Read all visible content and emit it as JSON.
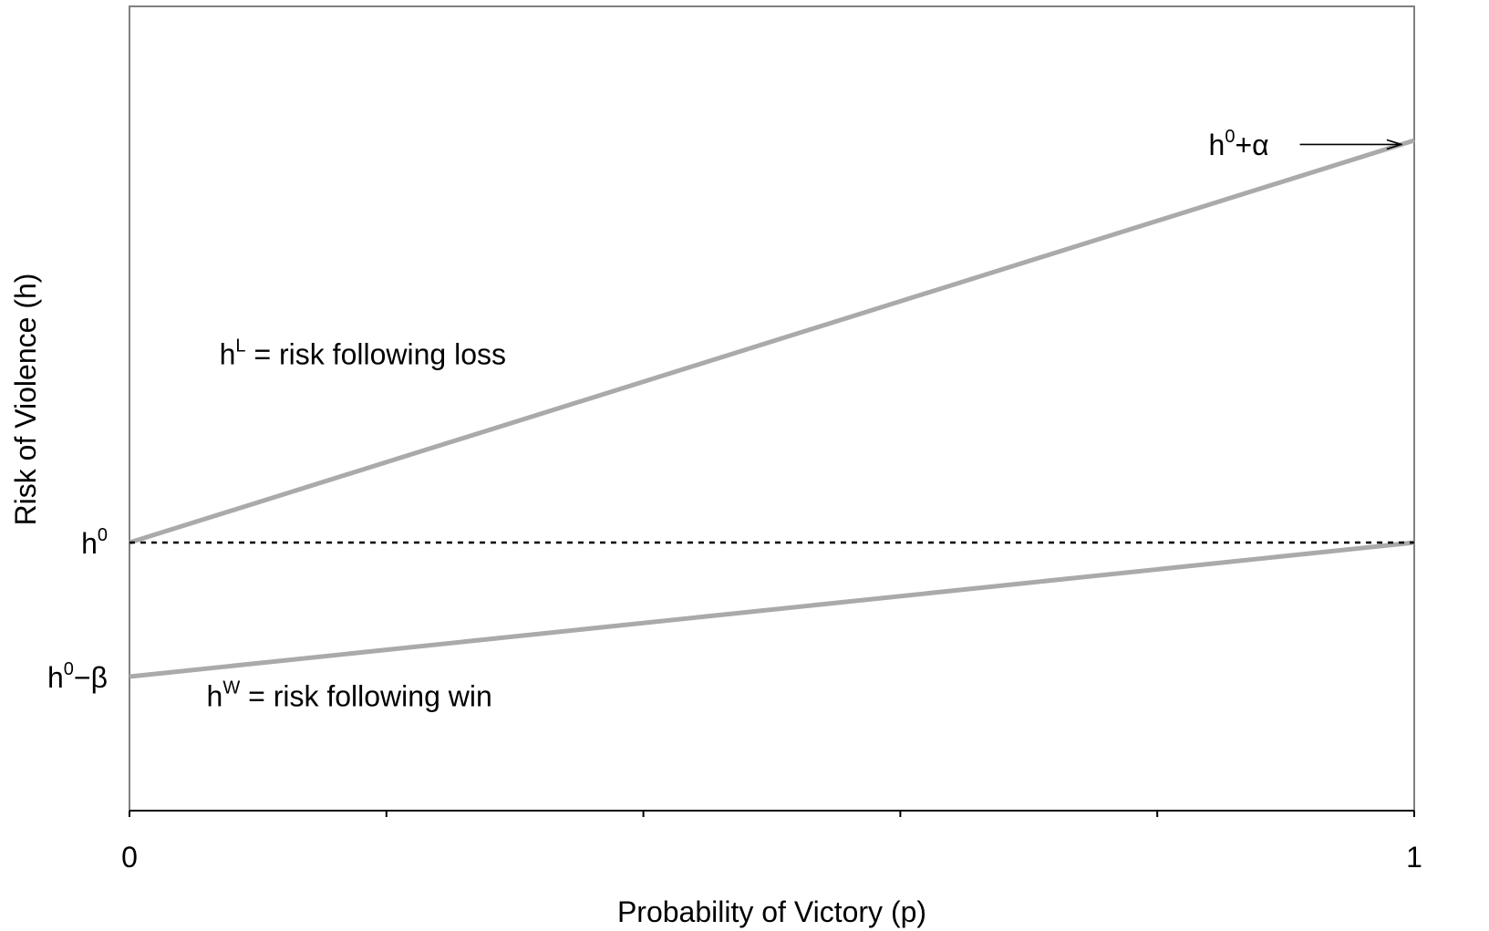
{
  "chart_data": {
    "type": "line",
    "xlabel": "Probability of Victory (p)",
    "ylabel": "Risk of Violence (h)",
    "xlim": [
      0,
      1
    ],
    "ylim": [
      -2,
      4
    ],
    "grid": false,
    "x_tick_labels": [
      {
        "x": 0,
        "label": "0"
      },
      {
        "x": 1,
        "label": "1"
      }
    ],
    "x_tick_marks": [
      0,
      0.2,
      0.4,
      0.6,
      0.8,
      1
    ],
    "y_tick_labels": [
      {
        "y": 0,
        "base": "h",
        "sup": "0",
        "suffix": ""
      },
      {
        "y": -1,
        "base": "h",
        "sup": "0",
        "suffix": "−β"
      }
    ],
    "series": [
      {
        "x": [
          0,
          1
        ],
        "y": [
          0,
          3
        ],
        "color": "#aaaaaa",
        "style": "solid"
      },
      {
        "x": [
          0,
          1
        ],
        "y": [
          -1,
          0
        ],
        "color": "#aaaaaa",
        "style": "solid"
      },
      {
        "x": [
          0,
          1
        ],
        "y": [
          0,
          0
        ],
        "color": "#000000",
        "style": "dotted"
      }
    ],
    "annotations": [
      {
        "x": 0.07,
        "y": 1.33,
        "base": "h",
        "sup": "L",
        "text": " = risk following loss"
      },
      {
        "x": 0.06,
        "y": -1.22,
        "base": "h",
        "sup": "W",
        "text": " = risk following win"
      },
      {
        "x": 0.84,
        "y": 2.89,
        "base": "h",
        "sup": "0",
        "text": "+α",
        "arrow_to": [
          0.99,
          2.97
        ]
      }
    ]
  }
}
